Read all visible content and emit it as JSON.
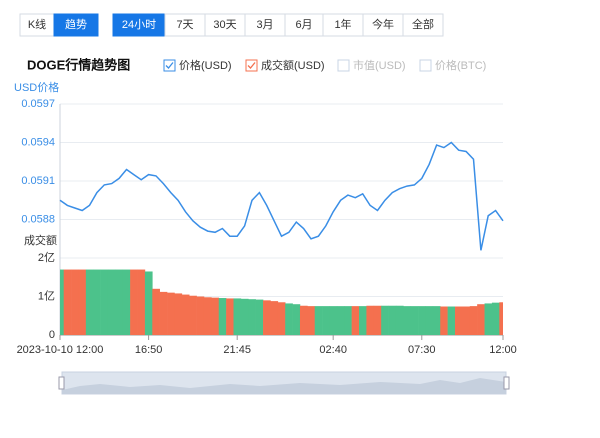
{
  "ui": {
    "tabs": [
      "K线",
      "趋势"
    ],
    "active_tab": 1,
    "ranges": [
      "24小时",
      "7天",
      "30天",
      "3月",
      "6月",
      "1年",
      "今年",
      "全部"
    ],
    "active_range": 0,
    "title": "DOGE行情趋势图",
    "legend": [
      {
        "name": "价格(USD)",
        "checked": true,
        "color": "#3a8ee6"
      },
      {
        "name": "成交额(USD)",
        "checked": true,
        "color": "#f4704f"
      },
      {
        "name": "市值(USD)",
        "checked": false,
        "color": "#c8d4e4"
      },
      {
        "name": "价格(BTC)",
        "checked": false,
        "color": "#c8d4e4"
      }
    ]
  },
  "chart_data": [
    {
      "type": "line",
      "y_label": "USD价格",
      "color": "#3a8ee6",
      "ylim": [
        0.0585,
        0.0597
      ],
      "yticks": [
        0.0588,
        0.0591,
        0.0594,
        0.0597
      ],
      "values": [
        0.05895,
        0.05891,
        0.05889,
        0.05887,
        0.05891,
        0.05901,
        0.05907,
        0.05908,
        0.05912,
        0.05919,
        0.05915,
        0.05911,
        0.05915,
        0.05914,
        0.05908,
        0.05901,
        0.05895,
        0.05886,
        0.05879,
        0.05874,
        0.05871,
        0.0587,
        0.05873,
        0.05867,
        0.05867,
        0.05875,
        0.05895,
        0.05901,
        0.05891,
        0.05879,
        0.05867,
        0.0587,
        0.05878,
        0.05873,
        0.05865,
        0.05867,
        0.05875,
        0.05886,
        0.05895,
        0.05899,
        0.05897,
        0.059,
        0.05891,
        0.05887,
        0.05895,
        0.05901,
        0.05904,
        0.05906,
        0.05907,
        0.05912,
        0.05923,
        0.05938,
        0.05936,
        0.0594,
        0.05934,
        0.05933,
        0.05927,
        0.05856,
        0.05883,
        0.05887,
        0.05879
      ]
    },
    {
      "type": "bar",
      "y_label": "成交额",
      "up_color": "#4cc28b",
      "down_color": "#f4704f",
      "ylim": [
        0,
        2
      ],
      "yticks": [
        0,
        {
          "value": 1,
          "label": "1亿"
        },
        {
          "value": 2,
          "label": "2亿"
        }
      ],
      "categories": [
        "2023-10-10 12:00",
        null,
        null,
        null,
        null,
        null,
        null,
        null,
        null,
        null,
        null,
        null,
        "16:50",
        null,
        null,
        null,
        null,
        null,
        null,
        null,
        null,
        null,
        null,
        null,
        "21:45",
        null,
        null,
        null,
        null,
        null,
        null,
        null,
        null,
        null,
        null,
        null,
        null,
        "02:40",
        null,
        null,
        null,
        null,
        null,
        null,
        null,
        null,
        null,
        null,
        null,
        "07:30",
        null,
        null,
        null,
        null,
        null,
        null,
        null,
        null,
        null,
        null,
        "12:00"
      ],
      "values": [
        1.7,
        1.7,
        1.7,
        1.7,
        1.7,
        1.7,
        1.7,
        1.7,
        1.7,
        1.7,
        1.7,
        1.7,
        1.65,
        1.2,
        1.12,
        1.1,
        1.08,
        1.05,
        1.02,
        1.0,
        0.98,
        0.97,
        0.96,
        0.95,
        0.95,
        0.94,
        0.93,
        0.92,
        0.9,
        0.88,
        0.85,
        0.82,
        0.8,
        0.76,
        0.75,
        0.75,
        0.75,
        0.75,
        0.75,
        0.75,
        0.75,
        0.75,
        0.76,
        0.76,
        0.76,
        0.76,
        0.76,
        0.75,
        0.75,
        0.75,
        0.75,
        0.75,
        0.74,
        0.74,
        0.74,
        0.74,
        0.75,
        0.8,
        0.82,
        0.84,
        0.85
      ]
    }
  ]
}
